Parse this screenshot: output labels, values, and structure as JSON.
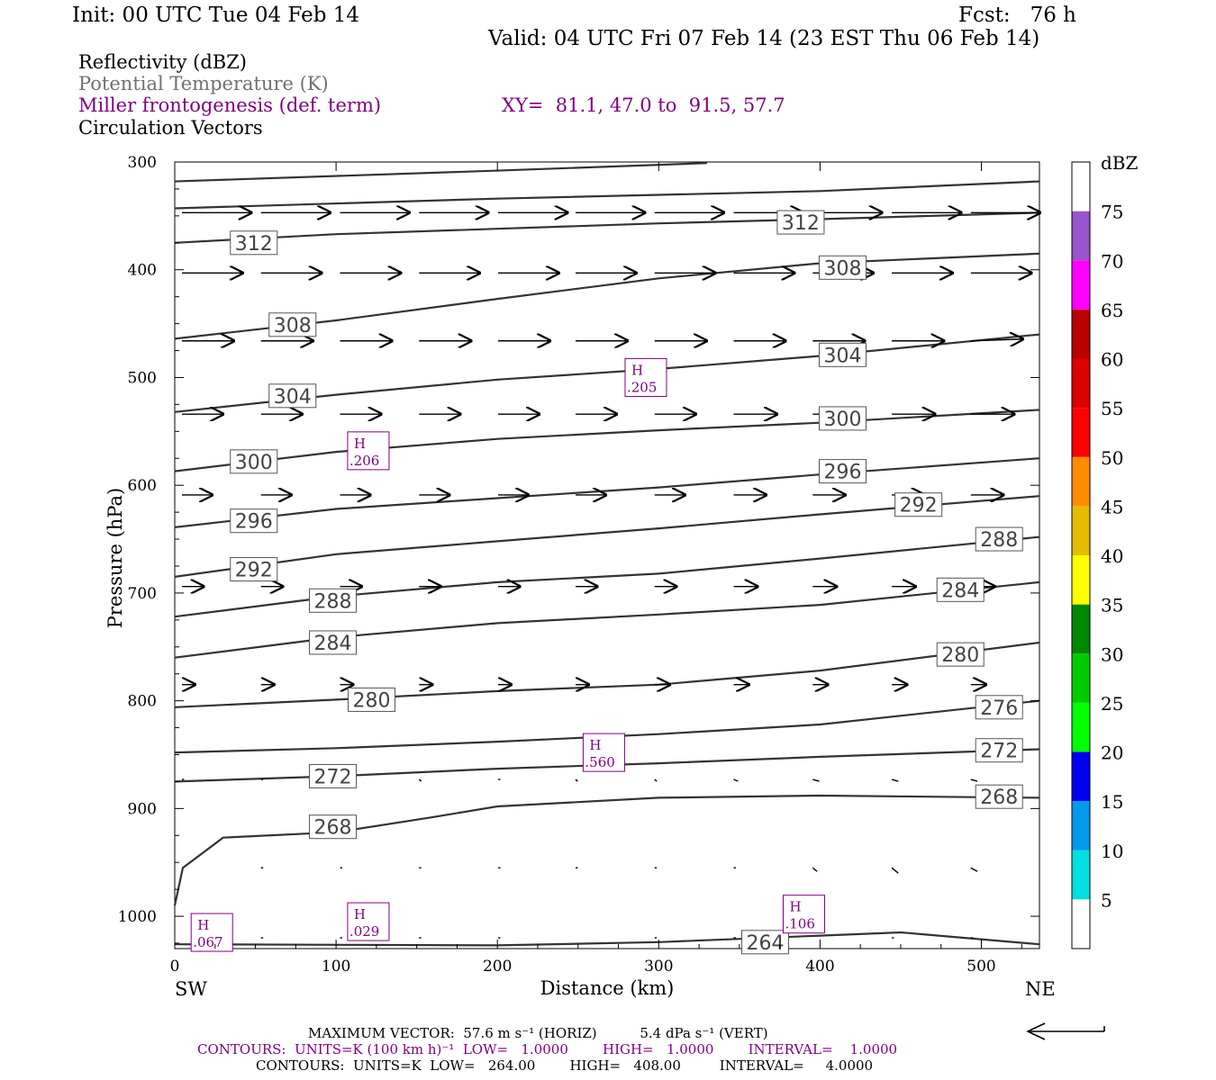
{
  "header": {
    "init": "Init: 00 UTC Tue 04 Feb 14",
    "fcst": "Fcst:   76 h",
    "valid": "Valid: 04 UTC Fri 07 Feb 14 (23 EST Thu 06 Feb 14)"
  },
  "legend": {
    "reflectivity": "Reflectivity (dBZ)",
    "theta": "Potential Temperature (K)",
    "miller": "Miller frontogenesis (def. term)",
    "xy": "XY=  81.1, 47.0 to  91.5, 57.7",
    "circulation": "Circulation Vectors"
  },
  "colors": {
    "theta_line": "#333333",
    "frontogenesis": "#800080",
    "vector": "#000000"
  },
  "chart_data": {
    "type": "line",
    "xlabel": "Distance (km)",
    "ylabel": "Pressure (hPa)",
    "xlim": [
      0,
      536
    ],
    "ylim": [
      1030,
      300
    ],
    "x_ticks": [
      "0",
      "100",
      "200",
      "300",
      "400",
      "500"
    ],
    "y_ticks": [
      "300",
      "400",
      "500",
      "600",
      "700",
      "800",
      "900",
      "1000"
    ],
    "x_end_labels": {
      "left": "SW",
      "right": "NE"
    },
    "theta_contours": [
      {
        "value": "312",
        "points": [
          [
            0,
            375
          ],
          [
            100,
            367
          ],
          [
            200,
            362
          ],
          [
            300,
            357
          ],
          [
            400,
            353
          ],
          [
            536,
            347
          ]
        ]
      },
      {
        "value": "308",
        "points": [
          [
            0,
            464
          ],
          [
            100,
            447
          ],
          [
            200,
            427
          ],
          [
            300,
            408
          ],
          [
            400,
            394
          ],
          [
            536,
            385
          ]
        ]
      },
      {
        "value": "304",
        "points": [
          [
            0,
            532
          ],
          [
            100,
            516
          ],
          [
            200,
            502
          ],
          [
            300,
            492
          ],
          [
            400,
            480
          ],
          [
            536,
            460
          ]
        ]
      },
      {
        "value": "300",
        "points": [
          [
            0,
            587
          ],
          [
            100,
            569
          ],
          [
            200,
            557
          ],
          [
            300,
            549
          ],
          [
            400,
            542
          ],
          [
            536,
            530
          ]
        ]
      },
      {
        "value": "296",
        "points": [
          [
            0,
            639
          ],
          [
            100,
            622
          ],
          [
            200,
            612
          ],
          [
            300,
            602
          ],
          [
            400,
            590
          ],
          [
            536,
            575
          ]
        ]
      },
      {
        "value": "292",
        "points": [
          [
            0,
            685
          ],
          [
            100,
            664
          ],
          [
            200,
            652
          ],
          [
            300,
            640
          ],
          [
            400,
            627
          ],
          [
            536,
            610
          ]
        ]
      },
      {
        "value": "288",
        "points": [
          [
            0,
            722
          ],
          [
            100,
            703
          ],
          [
            200,
            690
          ],
          [
            300,
            682
          ],
          [
            400,
            668
          ],
          [
            536,
            648
          ]
        ]
      },
      {
        "value": "284",
        "points": [
          [
            0,
            760
          ],
          [
            100,
            741
          ],
          [
            200,
            728
          ],
          [
            300,
            720
          ],
          [
            400,
            711
          ],
          [
            536,
            690
          ]
        ]
      },
      {
        "value": "280",
        "points": [
          [
            0,
            806
          ],
          [
            100,
            799
          ],
          [
            200,
            791
          ],
          [
            300,
            785
          ],
          [
            400,
            772
          ],
          [
            536,
            746
          ]
        ]
      },
      {
        "value": "276",
        "points": [
          [
            0,
            848
          ],
          [
            100,
            844
          ],
          [
            200,
            838
          ],
          [
            300,
            831
          ],
          [
            400,
            822
          ],
          [
            536,
            800
          ]
        ]
      },
      {
        "value": "272",
        "points": [
          [
            0,
            875
          ],
          [
            100,
            870
          ],
          [
            200,
            863
          ],
          [
            300,
            858
          ],
          [
            400,
            852
          ],
          [
            536,
            845
          ]
        ]
      },
      {
        "value": "268",
        "points": [
          [
            0,
            990
          ],
          [
            5,
            955
          ],
          [
            30,
            927
          ],
          [
            100,
            922
          ],
          [
            160,
            908
          ],
          [
            200,
            898
          ],
          [
            300,
            890
          ],
          [
            400,
            888
          ],
          [
            536,
            890
          ]
        ]
      },
      {
        "value": "264",
        "points": [
          [
            0,
            1026
          ],
          [
            200,
            1027
          ],
          [
            300,
            1024
          ],
          [
            400,
            1018
          ],
          [
            450,
            1015
          ],
          [
            536,
            1026
          ]
        ]
      }
    ],
    "theta_labels": [
      {
        "text": "312",
        "x": 49,
        "p": 375
      },
      {
        "text": "312",
        "x": 388,
        "p": 356
      },
      {
        "text": "308",
        "x": 73,
        "p": 451
      },
      {
        "text": "308",
        "x": 414,
        "p": 398
      },
      {
        "text": "304",
        "x": 73,
        "p": 517
      },
      {
        "text": "304",
        "x": 414,
        "p": 479
      },
      {
        "text": "300",
        "x": 49,
        "p": 578
      },
      {
        "text": "300",
        "x": 414,
        "p": 538
      },
      {
        "text": "296",
        "x": 49,
        "p": 633
      },
      {
        "text": "296",
        "x": 414,
        "p": 587
      },
      {
        "text": "292",
        "x": 49,
        "p": 678
      },
      {
        "text": "292",
        "x": 461,
        "p": 618
      },
      {
        "text": "288",
        "x": 98,
        "p": 707
      },
      {
        "text": "288",
        "x": 511,
        "p": 650
      },
      {
        "text": "284",
        "x": 98,
        "p": 746
      },
      {
        "text": "284",
        "x": 487,
        "p": 697
      },
      {
        "text": "280",
        "x": 122,
        "p": 799
      },
      {
        "text": "280",
        "x": 487,
        "p": 757
      },
      {
        "text": "276",
        "x": 511,
        "p": 806
      },
      {
        "text": "272",
        "x": 98,
        "p": 870
      },
      {
        "text": "272",
        "x": 511,
        "p": 846
      },
      {
        "text": "268",
        "x": 98,
        "p": 917
      },
      {
        "text": "268",
        "x": 511,
        "p": 889
      },
      {
        "text": "264",
        "x": 366,
        "p": 1024
      }
    ],
    "frontogenesis_highs": [
      {
        "symbol": "H",
        "value": ".205",
        "x": 292,
        "p": 500
      },
      {
        "symbol": "H",
        "value": ".206",
        "x": 120,
        "p": 568
      },
      {
        "symbol": "H",
        "value": ".560",
        "x": 266,
        "p": 848
      },
      {
        "symbol": "H",
        "value": ".067",
        "x": 23,
        "p": 1015
      },
      {
        "symbol": "H",
        "value": ".029",
        "x": 120,
        "p": 1005
      },
      {
        "symbol": "H",
        "value": ".106",
        "x": 390,
        "p": 998
      }
    ],
    "vector_rows": [
      {
        "p": 347,
        "x": [
          0,
          49,
          98,
          147,
          196,
          244,
          293,
          342,
          391,
          440,
          489
        ],
        "u": [
          32,
          32,
          32,
          32,
          32,
          32,
          32,
          32,
          32,
          32,
          32
        ],
        "w": [
          0,
          0,
          0,
          0,
          0,
          0,
          0,
          0,
          0,
          0,
          0
        ]
      },
      {
        "p": 403,
        "x": [
          0,
          49,
          98,
          147,
          196,
          244,
          293,
          342,
          391,
          440,
          489
        ],
        "u": [
          28,
          28,
          28,
          28,
          28,
          28,
          28,
          28,
          28,
          28,
          28
        ],
        "w": [
          0,
          0,
          0,
          0,
          0,
          0,
          0,
          0,
          0,
          0,
          0
        ]
      },
      {
        "p": 466,
        "x": [
          0,
          49,
          98,
          147,
          196,
          244,
          293,
          342,
          391,
          440,
          489
        ],
        "u": [
          24,
          24,
          24,
          24,
          24,
          24,
          24,
          24,
          24,
          24,
          24
        ],
        "w": [
          0,
          0,
          0,
          0,
          0,
          0,
          0,
          0,
          0,
          0,
          -1
        ]
      },
      {
        "p": 534,
        "x": [
          0,
          49,
          98,
          147,
          196,
          244,
          293,
          342,
          391,
          440,
          489
        ],
        "u": [
          19,
          19,
          19,
          19,
          19,
          19,
          19,
          20,
          20,
          20,
          20
        ],
        "w": [
          0,
          0,
          0,
          0,
          0,
          0,
          0,
          0,
          0,
          0,
          0
        ]
      },
      {
        "p": 609,
        "x": [
          0,
          49,
          98,
          147,
          196,
          244,
          293,
          342,
          391,
          440,
          489
        ],
        "u": [
          14,
          14,
          14,
          14,
          14,
          14,
          14,
          15,
          15,
          15,
          15
        ],
        "w": [
          0,
          0,
          0,
          0,
          0,
          0,
          0,
          0,
          0,
          0,
          0
        ]
      },
      {
        "p": 694,
        "x": [
          0,
          49,
          98,
          147,
          196,
          244,
          293,
          342,
          391,
          440,
          489
        ],
        "u": [
          10,
          10,
          10,
          10,
          10,
          10,
          10,
          11,
          11,
          11,
          11
        ],
        "w": [
          0,
          0,
          0,
          0,
          0,
          0,
          0,
          0,
          0,
          0,
          0
        ]
      },
      {
        "p": 785,
        "x": [
          0,
          49,
          98,
          147,
          196,
          244,
          293,
          342,
          391,
          440,
          489
        ],
        "u": [
          6,
          6,
          6,
          6,
          6,
          6,
          7,
          7,
          7,
          7,
          7
        ],
        "w": [
          0,
          0,
          0,
          0,
          0,
          0,
          0,
          0,
          0,
          0,
          0
        ]
      },
      {
        "p": 873,
        "x": [
          0,
          49,
          147,
          196,
          244,
          293,
          342,
          391,
          440,
          489
        ],
        "u": [
          1,
          1,
          1,
          1,
          1,
          1,
          2,
          3,
          3,
          3
        ],
        "w": [
          0,
          0,
          1,
          0,
          1,
          1,
          1,
          1,
          1,
          1
        ]
      },
      {
        "p": 955,
        "x": [
          49,
          98,
          147,
          196,
          244,
          293,
          342,
          391,
          440,
          489
        ],
        "u": [
          1,
          1,
          1,
          1,
          1,
          1,
          1,
          2,
          3,
          3
        ],
        "w": [
          0,
          0,
          0,
          0,
          0,
          0,
          0,
          2,
          3,
          2
        ]
      },
      {
        "p": 1020,
        "x": [
          49,
          98,
          147,
          196,
          293,
          342,
          440,
          489
        ],
        "u": [
          1,
          1,
          1,
          1,
          1,
          1,
          1,
          1
        ],
        "w": [
          0,
          0,
          0,
          0,
          0,
          0,
          0,
          0
        ]
      }
    ],
    "colorbar": {
      "title": "dBZ",
      "labels": [
        "5",
        "10",
        "15",
        "20",
        "25",
        "30",
        "35",
        "40",
        "45",
        "50",
        "55",
        "60",
        "65",
        "70",
        "75"
      ],
      "colors": [
        "#ffffff",
        "#00e0e0",
        "#0099ee",
        "#0000ee",
        "#00ff00",
        "#00cc00",
        "#008800",
        "#ffff00",
        "#e5bc00",
        "#ff8c00",
        "#ff0000",
        "#dd0000",
        "#bb0000",
        "#ff00ff",
        "#9955cc",
        "#ffffff"
      ]
    }
  },
  "footer": {
    "line1": "MAXIMUM VECTOR:  57.6 m s⁻¹ (HORIZ)          5.4 dPa s⁻¹ (VERT)",
    "line2": "CONTOURS:  UNITS=K (100 km h)⁻¹  LOW=   1.0000        HIGH=   1.0000        INTERVAL=    1.0000",
    "line3": "CONTOURS:  UNITS=K  LOW=   264.00        HIGH=   408.00         INTERVAL=     4.0000"
  }
}
